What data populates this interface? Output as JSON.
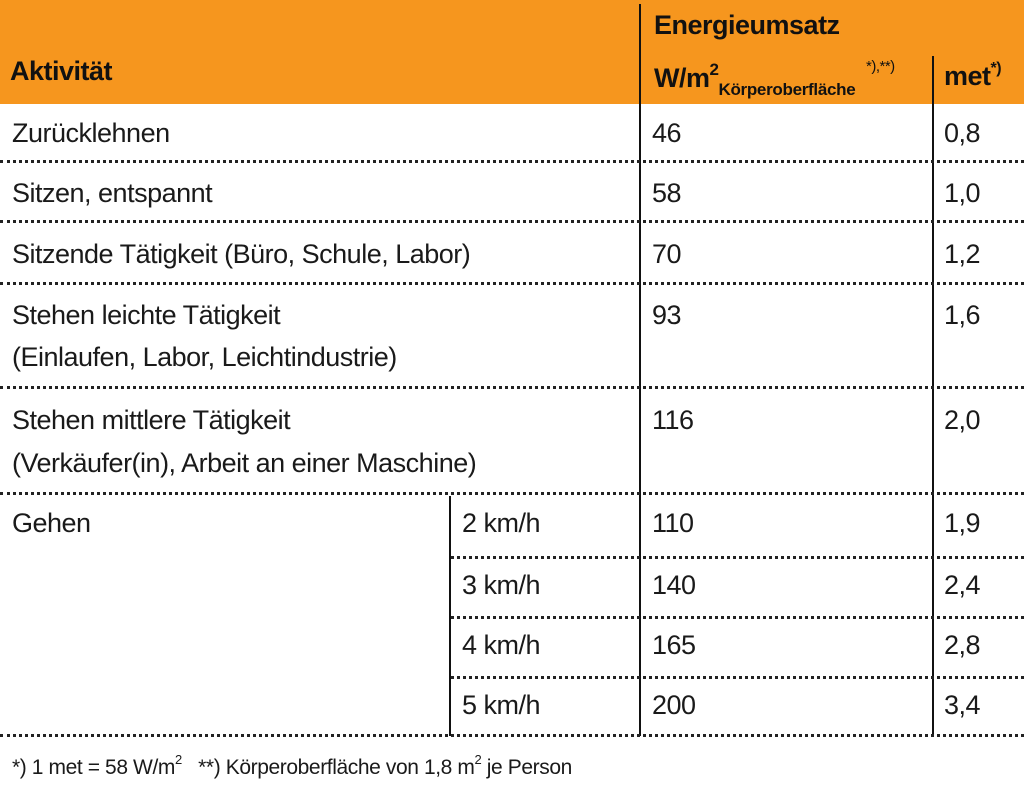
{
  "header": {
    "activity": "Aktivität",
    "energy_group": "Energieumsatz",
    "wm2_main": "W/m",
    "wm2_exp": "2",
    "wm2_sub": "Körperoberfläche",
    "wm2_mark": "*),**)",
    "met_label": "met",
    "met_mark": "*)"
  },
  "rows": [
    {
      "activity_line1": "Zurücklehnen",
      "activity_line2": "",
      "speed": "",
      "wm2": "46",
      "met": "0,8"
    },
    {
      "activity_line1": "Sitzen, entspannt",
      "activity_line2": "",
      "speed": "",
      "wm2": "58",
      "met": "1,0"
    },
    {
      "activity_line1": "Sitzende Tätigkeit (Büro, Schule, Labor)",
      "activity_line2": "",
      "speed": "",
      "wm2": "70",
      "met": "1,2"
    },
    {
      "activity_line1": "Stehen leichte Tätigkeit",
      "activity_line2": "(Einlaufen, Labor, Leichtindustrie)",
      "speed": "",
      "wm2": "93",
      "met": "1,6"
    },
    {
      "activity_line1": "Stehen mittlere Tätigkeit",
      "activity_line2": "(Verkäufer(in), Arbeit an einer Maschine)",
      "speed": "",
      "wm2": "116",
      "met": "2,0"
    },
    {
      "activity_line1": "Gehen",
      "activity_line2": "",
      "speed": "2 km/h",
      "wm2": "110",
      "met": "1,9"
    },
    {
      "activity_line1": "",
      "activity_line2": "",
      "speed": "3 km/h",
      "wm2": "140",
      "met": "2,4"
    },
    {
      "activity_line1": "",
      "activity_line2": "",
      "speed": "4 km/h",
      "wm2": "165",
      "met": "2,8"
    },
    {
      "activity_line1": "",
      "activity_line2": "",
      "speed": "5 km/h",
      "wm2": "200",
      "met": "3,4"
    }
  ],
  "footnote": {
    "part1": "*) 1 met = 58 W/m",
    "part1_exp": "2",
    "part2": "**) Körperoberfläche von 1,8 m",
    "part2_exp": "2",
    "part3": " je Person"
  },
  "colors": {
    "header_bg": "#F6961E",
    "text": "#1a1a1a",
    "rule": "#222222"
  }
}
